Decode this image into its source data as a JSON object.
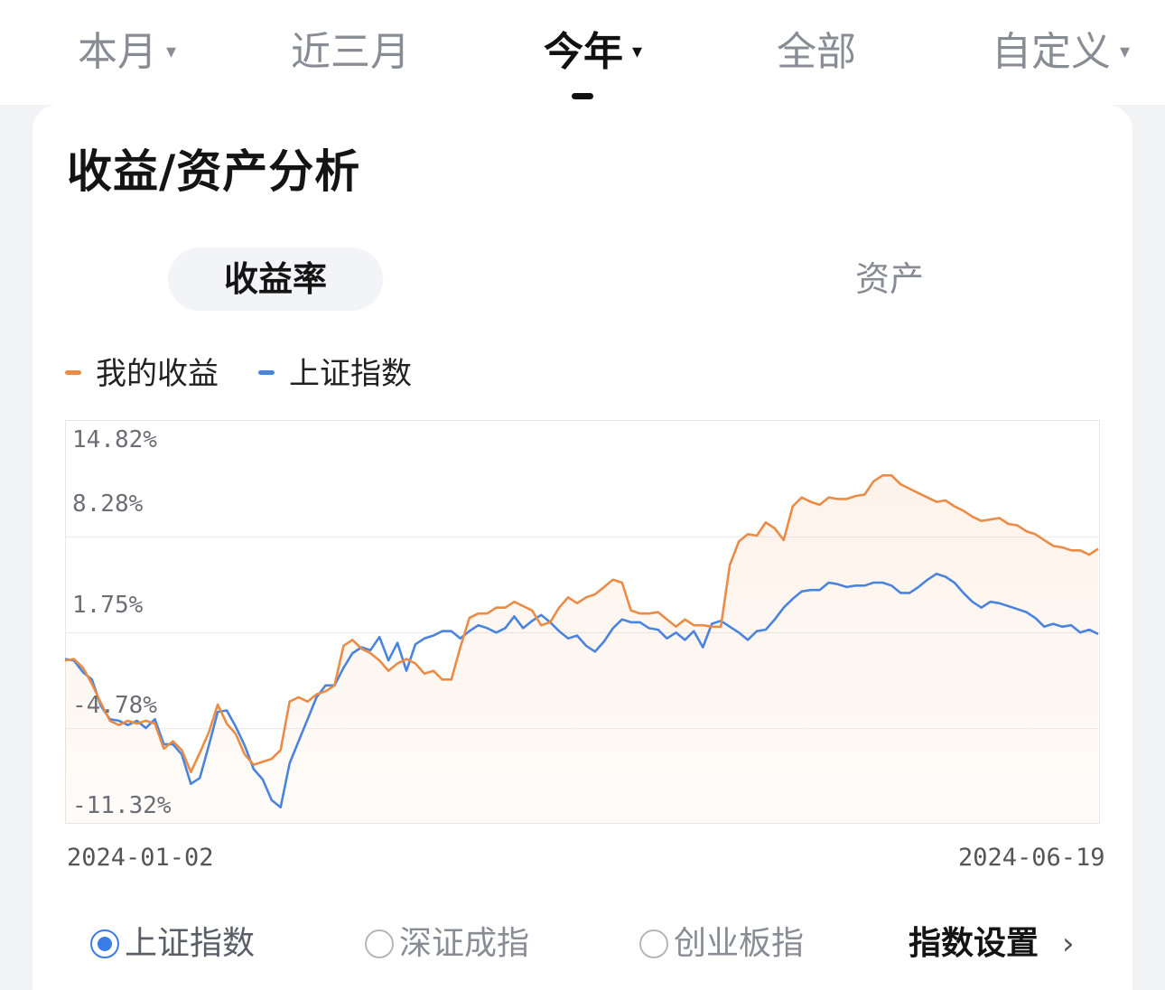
{
  "period_tabs": [
    {
      "label": "本月",
      "caret": "▾",
      "active": false
    },
    {
      "label": "近三月",
      "caret": "",
      "active": false
    },
    {
      "label": "今年",
      "caret": "▾",
      "active": true
    },
    {
      "label": "全部",
      "caret": "",
      "active": false
    },
    {
      "label": "自定义",
      "caret": "▾",
      "active": false
    }
  ],
  "card": {
    "title": "收益/资产分析",
    "segments": {
      "active": "收益率",
      "inactive": "资产"
    }
  },
  "legend": [
    {
      "label": "我的收益",
      "color": "#ea8b46"
    },
    {
      "label": "上证指数",
      "color": "#4a84dc"
    }
  ],
  "chart_data": {
    "type": "line",
    "y_ticks": [
      "14.82%",
      "8.28%",
      "1.75%",
      "-4.78%",
      "-11.32%"
    ],
    "ylim": [
      -11.32,
      14.82
    ],
    "x_start_label": "2024-01-02",
    "x_end_label": "2024-06-19",
    "grid": true,
    "series": [
      {
        "name": "我的收益",
        "color": "#ea8b46",
        "values": [
          -0.2,
          -0.1,
          -0.7,
          -1.8,
          -3.1,
          -4.3,
          -4.6,
          -4.3,
          -4.5,
          -4.3,
          -4.5,
          -6.2,
          -5.7,
          -6.3,
          -7.8,
          -6.5,
          -5.1,
          -3.2,
          -4.5,
          -5.2,
          -6.6,
          -7.3,
          -7.1,
          -6.9,
          -6.3,
          -3.0,
          -2.7,
          -3.0,
          -2.5,
          -2.3,
          -1.9,
          0.8,
          1.2,
          0.6,
          0.3,
          -0.2,
          -0.9,
          -0.4,
          -0.1,
          -0.4,
          -1.1,
          -0.9,
          -1.5,
          -1.5,
          0.7,
          2.7,
          3.0,
          3.0,
          3.4,
          3.4,
          3.8,
          3.5,
          3.2,
          2.2,
          2.4,
          3.4,
          4.1,
          3.7,
          4.1,
          4.3,
          4.8,
          5.3,
          5.1,
          3.2,
          3.0,
          3.0,
          3.1,
          2.6,
          2.1,
          2.6,
          2.2,
          2.2,
          2.1,
          2.1,
          6.3,
          7.9,
          8.4,
          8.3,
          9.2,
          8.8,
          8.0,
          10.3,
          10.9,
          10.6,
          10.4,
          10.9,
          10.8,
          10.8,
          11.0,
          11.1,
          12.0,
          12.4,
          12.4,
          11.8,
          11.5,
          11.2,
          10.9,
          10.6,
          10.7,
          10.3,
          10.0,
          9.6,
          9.3,
          9.4,
          9.5,
          9.1,
          9.0,
          8.6,
          8.4,
          8.0,
          7.6,
          7.5,
          7.3,
          7.3,
          7.0,
          7.4
        ]
      },
      {
        "name": "上证指数",
        "color": "#4a84dc",
        "values": [
          -0.1,
          -0.2,
          -1.0,
          -1.5,
          -3.3,
          -4.2,
          -4.3,
          -4.6,
          -4.3,
          -4.8,
          -4.2,
          -5.9,
          -5.9,
          -6.6,
          -8.6,
          -8.2,
          -6.0,
          -3.7,
          -3.6,
          -4.7,
          -6.0,
          -7.6,
          -8.3,
          -9.7,
          -10.2,
          -7.2,
          -5.7,
          -4.2,
          -2.7,
          -1.9,
          -1.9,
          -0.7,
          0.3,
          0.7,
          0.5,
          1.4,
          -0.2,
          1.0,
          -0.9,
          0.9,
          1.3,
          1.5,
          1.8,
          1.8,
          1.3,
          1.8,
          2.2,
          2.0,
          1.7,
          2.0,
          2.8,
          2.0,
          2.5,
          2.9,
          2.4,
          1.8,
          1.3,
          1.5,
          0.8,
          0.4,
          1.1,
          2.0,
          2.6,
          2.4,
          2.4,
          2.0,
          1.9,
          1.3,
          1.7,
          1.2,
          1.8,
          0.7,
          2.3,
          2.5,
          2.1,
          1.7,
          1.2,
          1.8,
          1.9,
          2.6,
          3.4,
          4.0,
          4.5,
          4.6,
          4.6,
          5.1,
          5.0,
          4.8,
          4.9,
          4.9,
          5.1,
          5.1,
          4.9,
          4.4,
          4.4,
          4.8,
          5.3,
          5.7,
          5.5,
          5.1,
          4.4,
          3.8,
          3.4,
          3.8,
          3.7,
          3.5,
          3.3,
          3.1,
          2.7,
          2.1,
          2.3,
          2.1,
          2.2,
          1.7,
          1.9,
          1.6
        ]
      }
    ]
  },
  "index_options": [
    {
      "label": "上证指数",
      "selected": true
    },
    {
      "label": "深证成指",
      "selected": false
    },
    {
      "label": "创业板指",
      "selected": false
    }
  ],
  "index_settings": {
    "label": "指数设置",
    "chevron": "›"
  }
}
